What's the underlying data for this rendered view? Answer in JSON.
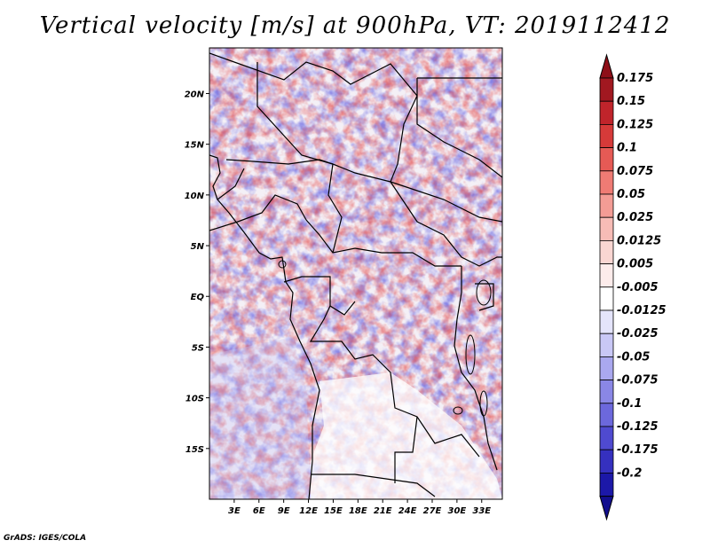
{
  "title": "Vertical velocity [m/s] at 900hPa, VT: 2019112412",
  "credit": "GrADS: IGES/COLA",
  "map": {
    "lon_range": [
      0,
      35.5
    ],
    "lat_range": [
      -20,
      24.5
    ],
    "lat_ticks": [
      {
        "value": 20,
        "label": "20N"
      },
      {
        "value": 15,
        "label": "15N"
      },
      {
        "value": 10,
        "label": "10N"
      },
      {
        "value": 5,
        "label": "5N"
      },
      {
        "value": 0,
        "label": "EQ"
      },
      {
        "value": -5,
        "label": "5S"
      },
      {
        "value": -10,
        "label": "10S"
      },
      {
        "value": -15,
        "label": "15S"
      }
    ],
    "lon_ticks": [
      {
        "value": 3,
        "label": "3E"
      },
      {
        "value": 6,
        "label": "6E"
      },
      {
        "value": 9,
        "label": "9E"
      },
      {
        "value": 12,
        "label": "12E"
      },
      {
        "value": 15,
        "label": "15E"
      },
      {
        "value": 18,
        "label": "18E"
      },
      {
        "value": 21,
        "label": "21E"
      },
      {
        "value": 24,
        "label": "24E"
      },
      {
        "value": 27,
        "label": "27E"
      },
      {
        "value": 30,
        "label": "30E"
      },
      {
        "value": 33,
        "label": "33E"
      }
    ]
  },
  "colorbar": {
    "levels": [
      {
        "label": "0.175",
        "color": "#a11820"
      },
      {
        "label": "0.15",
        "color": "#c0242b"
      },
      {
        "label": "0.125",
        "color": "#d63a39"
      },
      {
        "label": "0.1",
        "color": "#e65a55"
      },
      {
        "label": "0.075",
        "color": "#ef7b74"
      },
      {
        "label": "0.05",
        "color": "#f39c95"
      },
      {
        "label": "0.025",
        "color": "#f7bcb6"
      },
      {
        "label": "0.0125",
        "color": "#fad6d2"
      },
      {
        "label": "0.005",
        "color": "#fdeceb"
      },
      {
        "label": "-0.005",
        "color": "#ffffff"
      },
      {
        "label": "-0.0125",
        "color": "#e4e4fb"
      },
      {
        "label": "-0.025",
        "color": "#c9c8f6"
      },
      {
        "label": "-0.05",
        "color": "#aaa8ef"
      },
      {
        "label": "-0.075",
        "color": "#8a87e6"
      },
      {
        "label": "-0.1",
        "color": "#6c68dc"
      },
      {
        "label": "-0.125",
        "color": "#4f4ad0"
      },
      {
        "label": "-0.175",
        "color": "#3530bf"
      },
      {
        "label": "-0.2",
        "color": "#1c18a8"
      }
    ],
    "top_arrow_color": "#8e0f18",
    "bottom_arrow_color": "#120e8e"
  }
}
